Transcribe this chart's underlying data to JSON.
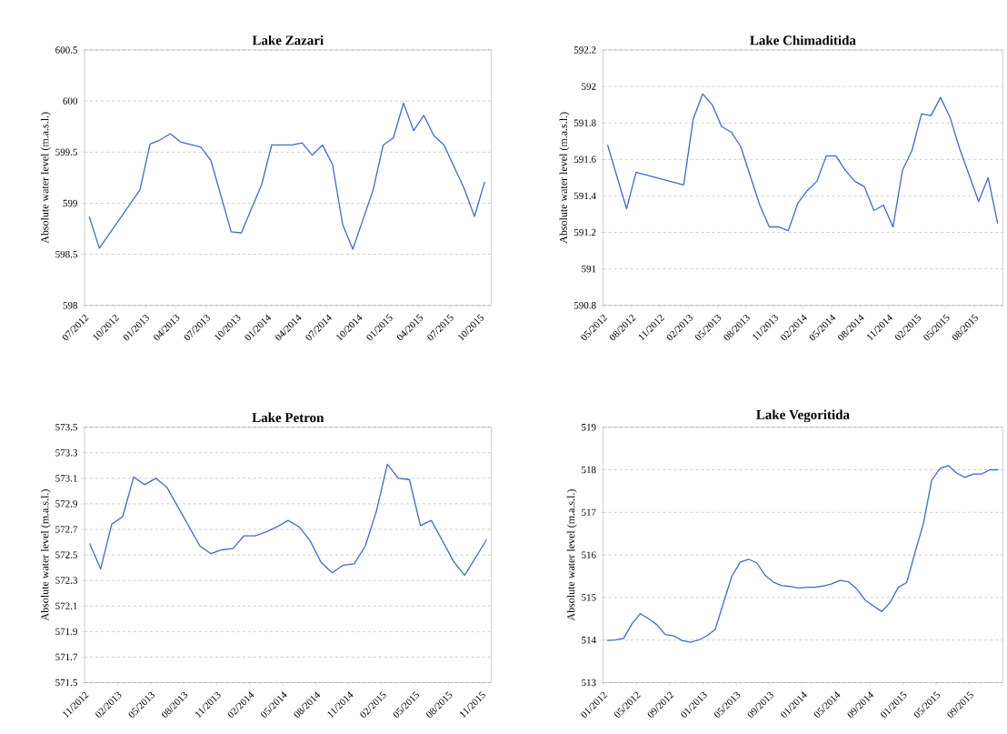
{
  "chart_data": [
    {
      "type": "line",
      "title": "Lake Zazari",
      "ylabel": "Absolute water level (m.a.s.l.)",
      "color": "#4169d2",
      "grid": "y",
      "x": [
        "2012-07-15",
        "2012-08-15",
        "2012-12-15",
        "2013-01-15",
        "2013-02-15",
        "2013-03-15",
        "2013-04-15",
        "2013-06-15",
        "2013-07-15",
        "2013-09-15",
        "2013-10-15",
        "2013-12-15",
        "2014-01-15",
        "2014-02-15",
        "2014-03-15",
        "2014-04-15",
        "2014-05-15",
        "2014-06-15",
        "2014-07-15",
        "2014-08-15",
        "2014-09-15",
        "2014-11-15",
        "2014-12-15",
        "2015-01-15",
        "2015-02-15",
        "2015-03-15",
        "2015-04-15",
        "2015-05-15",
        "2015-06-15",
        "2015-08-15",
        "2015-09-15",
        "2015-10-15"
      ],
      "values": [
        598.87,
        598.56,
        599.13,
        599.58,
        599.62,
        599.68,
        599.6,
        599.55,
        599.42,
        598.72,
        598.71,
        599.18,
        599.57,
        599.57,
        599.57,
        599.59,
        599.47,
        599.57,
        599.38,
        598.79,
        598.55,
        599.13,
        599.57,
        599.64,
        599.98,
        599.71,
        599.86,
        599.66,
        599.57,
        599.14,
        598.87,
        599.21
      ],
      "xlim": [
        "2012-07",
        "2015-11-05"
      ],
      "ylim": [
        598,
        600.5
      ],
      "yticks": [
        598,
        598.5,
        599,
        599.5,
        600,
        600.5
      ],
      "xticks": [
        {
          "value": "2012-07",
          "label": "07/2012"
        },
        {
          "value": "2012-10",
          "label": "10/2012"
        },
        {
          "value": "2013-01",
          "label": "01/2013"
        },
        {
          "value": "2013-04",
          "label": "04/2013"
        },
        {
          "value": "2013-07",
          "label": "07/2013"
        },
        {
          "value": "2013-10",
          "label": "10/2013"
        },
        {
          "value": "2014-01",
          "label": "01/2014"
        },
        {
          "value": "2014-04",
          "label": "04/2014"
        },
        {
          "value": "2014-07",
          "label": "07/2014"
        },
        {
          "value": "2014-10",
          "label": "10/2014"
        },
        {
          "value": "2015-01",
          "label": "01/2015"
        },
        {
          "value": "2015-04",
          "label": "04/2015"
        },
        {
          "value": "2015-07",
          "label": "07/2015"
        },
        {
          "value": "2015-10",
          "label": "10/2015"
        }
      ]
    },
    {
      "type": "line",
      "title": "Lake Chimaditida",
      "ylabel": "Absolute water level (m.a.s.l.)",
      "color": "#4169d2",
      "grid": "y",
      "x": [
        "2012-05-15",
        "2012-07-15",
        "2012-08-15",
        "2013-01-15",
        "2013-02-15",
        "2013-03-15",
        "2013-04-15",
        "2013-05-15",
        "2013-06-15",
        "2013-07-15",
        "2013-09-15",
        "2013-10-15",
        "2013-11-15",
        "2013-12-15",
        "2014-01-15",
        "2014-02-15",
        "2014-03-15",
        "2014-04-15",
        "2014-05-15",
        "2014-06-15",
        "2014-07-15",
        "2014-08-15",
        "2014-09-15",
        "2014-10-15",
        "2014-11-15",
        "2014-12-15",
        "2015-01-15",
        "2015-02-15",
        "2015-03-15",
        "2015-04-15",
        "2015-05-15",
        "2015-06-15",
        "2015-08-15",
        "2015-09-15",
        "2015-10-15"
      ],
      "values": [
        591.68,
        591.33,
        591.53,
        591.46,
        591.82,
        591.96,
        591.9,
        591.78,
        591.75,
        591.67,
        591.35,
        591.23,
        591.23,
        591.21,
        591.36,
        591.43,
        591.48,
        591.62,
        591.62,
        591.54,
        591.48,
        591.45,
        591.32,
        591.35,
        591.23,
        591.54,
        591.65,
        591.85,
        591.84,
        591.94,
        591.83,
        591.66,
        591.37,
        591.5,
        591.25
      ],
      "xlim": [
        "2012-05",
        "2015-11"
      ],
      "ylim": [
        590.8,
        592.2
      ],
      "yticks": [
        590.8,
        591,
        591.2,
        591.4,
        591.6,
        591.8,
        592,
        592.2
      ],
      "xticks": [
        {
          "value": "2012-05",
          "label": "05/2012"
        },
        {
          "value": "2012-08",
          "label": "08/2012"
        },
        {
          "value": "2012-11",
          "label": "11/2012"
        },
        {
          "value": "2013-02",
          "label": "02/2013"
        },
        {
          "value": "2013-05",
          "label": "05/2013"
        },
        {
          "value": "2013-08",
          "label": "08/2013"
        },
        {
          "value": "2013-11",
          "label": "11/2013"
        },
        {
          "value": "2014-02",
          "label": "02/2014"
        },
        {
          "value": "2014-05",
          "label": "05/2014"
        },
        {
          "value": "2014-08",
          "label": "08/2014"
        },
        {
          "value": "2014-11",
          "label": "11/2014"
        },
        {
          "value": "2015-02",
          "label": "02/2015"
        },
        {
          "value": "2015-05",
          "label": "05/2015"
        },
        {
          "value": "2015-08",
          "label": "08/2015"
        },
        {
          "value": "2015-11",
          "label": null
        }
      ]
    },
    {
      "type": "line",
      "title": "Lake Petron",
      "ylabel": "Absolute water level (m.a.s.l.)",
      "color": "#4169d2",
      "grid": "y",
      "x": [
        "2012-11-15",
        "2012-12-15",
        "2013-01-15",
        "2013-02-15",
        "2013-03-15",
        "2013-04-15",
        "2013-05-15",
        "2013-06-15",
        "2013-09-15",
        "2013-10-15",
        "2013-11-15",
        "2013-12-15",
        "2014-01-15",
        "2014-02-15",
        "2014-03-15",
        "2014-04-15",
        "2014-05-15",
        "2014-06-15",
        "2014-07-15",
        "2014-08-15",
        "2014-09-15",
        "2014-10-15",
        "2014-11-15",
        "2014-12-15",
        "2015-01-15",
        "2015-02-15",
        "2015-03-15",
        "2015-04-15",
        "2015-05-15",
        "2015-06-15",
        "2015-08-15",
        "2015-09-15",
        "2015-11-15"
      ],
      "values": [
        572.59,
        572.39,
        572.74,
        572.8,
        573.11,
        573.05,
        573.1,
        573.03,
        572.57,
        572.51,
        572.54,
        572.55,
        572.65,
        572.65,
        572.68,
        572.72,
        572.77,
        572.72,
        572.61,
        572.44,
        572.36,
        572.42,
        572.43,
        572.57,
        572.84,
        573.21,
        573.1,
        573.09,
        572.73,
        572.77,
        572.45,
        572.34,
        572.62
      ],
      "xlim": [
        "2012-11",
        "2015-11-28"
      ],
      "ylim": [
        571.5,
        573.5
      ],
      "yticks": [
        571.5,
        571.7,
        571.9,
        572.1,
        572.3,
        572.5,
        572.7,
        572.9,
        573.1,
        573.3,
        573.5
      ],
      "xticks": [
        {
          "value": "2012-11",
          "label": "11/2012"
        },
        {
          "value": "2013-02",
          "label": "02/2013"
        },
        {
          "value": "2013-05",
          "label": "05/2013"
        },
        {
          "value": "2013-08",
          "label": "08/2013"
        },
        {
          "value": "2013-11",
          "label": "11/2013"
        },
        {
          "value": "2014-02",
          "label": "02/2014"
        },
        {
          "value": "2014-05",
          "label": "05/2014"
        },
        {
          "value": "2014-08",
          "label": "08/2014"
        },
        {
          "value": "2014-11",
          "label": "11/2014"
        },
        {
          "value": "2015-02",
          "label": "02/2015"
        },
        {
          "value": "2015-05",
          "label": "05/2015"
        },
        {
          "value": "2015-08",
          "label": "08/2015"
        },
        {
          "value": "2015-11",
          "label": "11/2015"
        }
      ]
    },
    {
      "type": "line",
      "title": "Lake Vegoritida",
      "ylabel": "Absolute water level (m.a.s.l.)",
      "color": "#4169d2",
      "grid": "y",
      "x": [
        "2012-01-15",
        "2012-02-15",
        "2012-03-15",
        "2012-04-15",
        "2012-05-15",
        "2012-06-15",
        "2012-07-15",
        "2012-08-15",
        "2012-09-15",
        "2012-10-15",
        "2012-11-15",
        "2012-12-15",
        "2013-01-15",
        "2013-02-15",
        "2013-03-15",
        "2013-04-15",
        "2013-05-15",
        "2013-06-15",
        "2013-07-15",
        "2013-08-15",
        "2013-09-15",
        "2013-10-15",
        "2013-11-15",
        "2013-12-15",
        "2014-01-15",
        "2014-02-15",
        "2014-03-15",
        "2014-04-15",
        "2014-05-15",
        "2014-06-15",
        "2014-07-15",
        "2014-08-15",
        "2014-09-15",
        "2014-10-15",
        "2014-11-15",
        "2014-12-15",
        "2015-01-15",
        "2015-02-15",
        "2015-03-15",
        "2015-04-15",
        "2015-05-15",
        "2015-06-15",
        "2015-07-15",
        "2015-08-15",
        "2015-09-15",
        "2015-10-15",
        "2015-11-15",
        "2015-12-15"
      ],
      "values": [
        513.99,
        514.0,
        514.04,
        514.38,
        514.62,
        514.5,
        514.36,
        514.13,
        514.1,
        513.99,
        513.95,
        514.0,
        514.1,
        514.25,
        514.88,
        515.5,
        515.83,
        515.9,
        515.81,
        515.52,
        515.36,
        515.28,
        515.26,
        515.22,
        515.24,
        515.24,
        515.27,
        515.32,
        515.4,
        515.37,
        515.2,
        514.94,
        514.8,
        514.67,
        514.88,
        515.24,
        515.35,
        516.06,
        516.73,
        517.75,
        518.03,
        518.1,
        517.92,
        517.82,
        517.9,
        517.9,
        518.0,
        518.0
      ],
      "xlim": [
        "2012-01",
        "2016-01"
      ],
      "ylim": [
        513,
        519
      ],
      "yticks": [
        513,
        514,
        515,
        516,
        517,
        518,
        519
      ],
      "xticks": [
        {
          "value": "2012-01",
          "label": "01/2012"
        },
        {
          "value": "2012-05",
          "label": "05/2012"
        },
        {
          "value": "2012-09",
          "label": "09/2012"
        },
        {
          "value": "2013-01",
          "label": "01/2013"
        },
        {
          "value": "2013-05",
          "label": "05/2013"
        },
        {
          "value": "2013-09",
          "label": "09/2013"
        },
        {
          "value": "2014-01",
          "label": "01/2014"
        },
        {
          "value": "2014-05",
          "label": "05/2014"
        },
        {
          "value": "2014-09",
          "label": "09/2014"
        },
        {
          "value": "2015-01",
          "label": "01/2015"
        },
        {
          "value": "2015-05",
          "label": "05/2015"
        },
        {
          "value": "2015-09",
          "label": "09/2015"
        },
        {
          "value": "2016-01",
          "label": null
        }
      ]
    }
  ]
}
